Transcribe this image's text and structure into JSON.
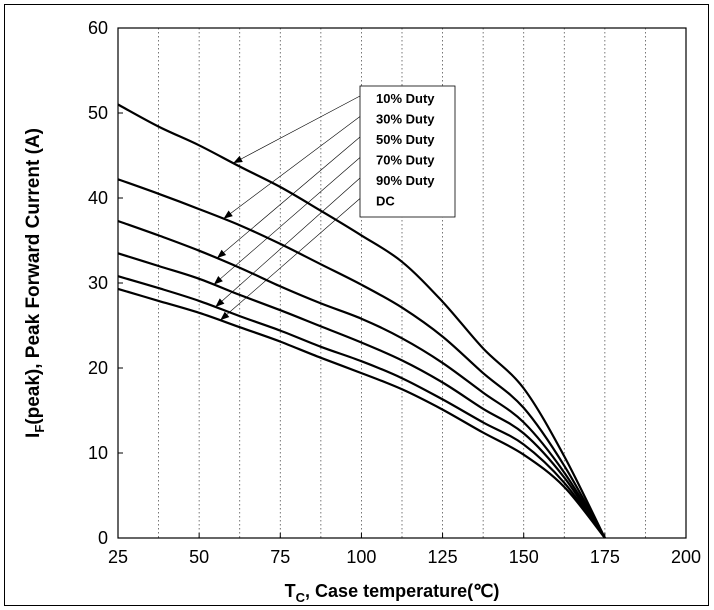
{
  "chart_data": {
    "type": "line",
    "xlabel": {
      "main": "T",
      "sub": "C",
      "rest": ", Case temperature(℃)"
    },
    "ylabel": {
      "main": "I",
      "sub": "F",
      "rest": "(peak), Peak Forward Current (A)"
    },
    "xlim": [
      25,
      200
    ],
    "ylim": [
      0,
      60
    ],
    "xticks": [
      25,
      50,
      75,
      100,
      125,
      150,
      175,
      200
    ],
    "yticks": [
      0,
      10,
      20,
      30,
      40,
      50,
      60
    ],
    "grid": {
      "vertical": "dotted",
      "horizontal": "none"
    },
    "legend_position": "top-center",
    "series": [
      {
        "name": "10% Duty",
        "x": [
          25,
          37.5,
          50,
          62.5,
          75,
          87.5,
          100,
          112.5,
          125,
          137.5,
          150,
          162.5,
          175
        ],
        "values": [
          51,
          48.4,
          46.2,
          43.7,
          41.3,
          38.5,
          35.6,
          32.5,
          27.8,
          22.3,
          17.6,
          9.6,
          0
        ]
      },
      {
        "name": "30% Duty",
        "x": [
          25,
          37.5,
          50,
          62.5,
          75,
          87.5,
          100,
          112.5,
          125,
          137.5,
          150,
          162.5,
          175
        ],
        "values": [
          42.2,
          40.5,
          38.7,
          36.8,
          34.6,
          32.2,
          29.8,
          27.1,
          23.7,
          19.4,
          15.3,
          8.5,
          0
        ]
      },
      {
        "name": "50% Duty",
        "x": [
          25,
          37.5,
          50,
          62.5,
          75,
          87.5,
          100,
          112.5,
          125,
          137.5,
          150,
          162.5,
          175
        ],
        "values": [
          37.3,
          35.6,
          33.8,
          31.8,
          29.6,
          27.6,
          25.8,
          23.5,
          20.6,
          17.1,
          13.6,
          7.7,
          0
        ]
      },
      {
        "name": "70% Duty",
        "x": [
          25,
          37.5,
          50,
          62.5,
          75,
          87.5,
          100,
          112.5,
          125,
          137.5,
          150,
          162.5,
          175
        ],
        "values": [
          33.5,
          32,
          30.5,
          28.6,
          26.8,
          24.9,
          23,
          20.9,
          18.3,
          15.2,
          12.3,
          7.1,
          0
        ]
      },
      {
        "name": "90% Duty",
        "x": [
          25,
          37.5,
          50,
          62.5,
          75,
          87.5,
          100,
          112.5,
          125,
          137.5,
          150,
          162.5,
          175
        ],
        "values": [
          30.8,
          29.4,
          27.9,
          26.1,
          24.4,
          22.5,
          20.8,
          18.8,
          16.3,
          13.6,
          11,
          6.5,
          0
        ]
      },
      {
        "name": "DC",
        "x": [
          25,
          37.5,
          50,
          62.5,
          75,
          87.5,
          100,
          112.5,
          125,
          137.5,
          150,
          162.5,
          175
        ],
        "values": [
          29.3,
          27.9,
          26.5,
          24.8,
          23.1,
          21.2,
          19.4,
          17.5,
          15.1,
          12.4,
          9.8,
          6,
          0
        ]
      }
    ],
    "legend_labels": [
      "10% Duty",
      "30% Duty",
      "50% Duty",
      "70% Duty",
      "90% Duty",
      "DC"
    ]
  }
}
